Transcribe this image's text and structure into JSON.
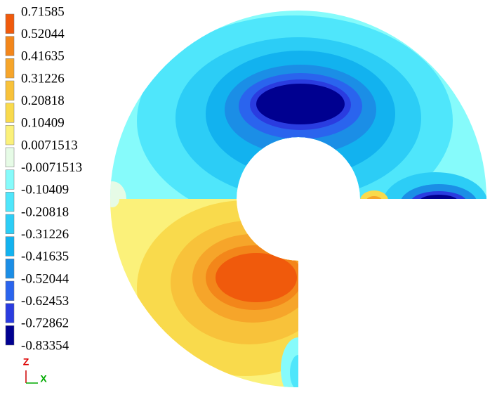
{
  "chart_data": {
    "type": "contour",
    "levels": [
      0.71585,
      0.52044,
      0.41635,
      0.31226,
      0.20818,
      0.10409,
      0.0071513,
      -0.0071513,
      -0.10409,
      -0.20818,
      -0.31226,
      -0.41635,
      -0.52044,
      -0.62453,
      -0.72862,
      -0.83354
    ],
    "colors": [
      "#f05a0c",
      "#f3861a",
      "#f6a52a",
      "#f8c23a",
      "#f9da4c",
      "#fbf17a",
      "#e6fbe6",
      "#86fbfb",
      "#4fe6fb",
      "#2ccdf6",
      "#12b2ef",
      "#1b8ee6",
      "#2a64ee",
      "#2a3ce0",
      "#000090"
    ],
    "axis_labels": {
      "z": "Z",
      "x": "X"
    }
  }
}
